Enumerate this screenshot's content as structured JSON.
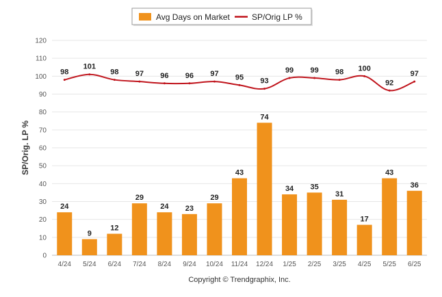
{
  "chart_data": {
    "type": "bar+line",
    "categories": [
      "4/24",
      "5/24",
      "6/24",
      "7/24",
      "8/24",
      "9/24",
      "10/24",
      "11/24",
      "12/24",
      "1/25",
      "2/25",
      "3/25",
      "4/25",
      "5/25",
      "6/25"
    ],
    "series": [
      {
        "name": "Avg Days on Market",
        "type": "bar",
        "color": "#f0921c",
        "values": [
          24,
          9,
          12,
          29,
          24,
          23,
          29,
          43,
          74,
          34,
          35,
          31,
          17,
          43,
          36
        ]
      },
      {
        "name": "SP/Orig LP %",
        "type": "line",
        "color": "#c0141c",
        "values": [
          98,
          101,
          98,
          97,
          96,
          96,
          97,
          95,
          93,
          99,
          99,
          98,
          100,
          92,
          97
        ]
      }
    ],
    "ylabel": "SP/Orig. LP %",
    "ylim": [
      0,
      120
    ],
    "yticks": [
      0,
      10,
      20,
      30,
      40,
      50,
      60,
      70,
      80,
      90,
      100,
      110,
      120
    ],
    "grid": true,
    "legend_position": "top-center"
  },
  "footer": {
    "copyright": "Copyright © Trendgraphix, Inc."
  }
}
